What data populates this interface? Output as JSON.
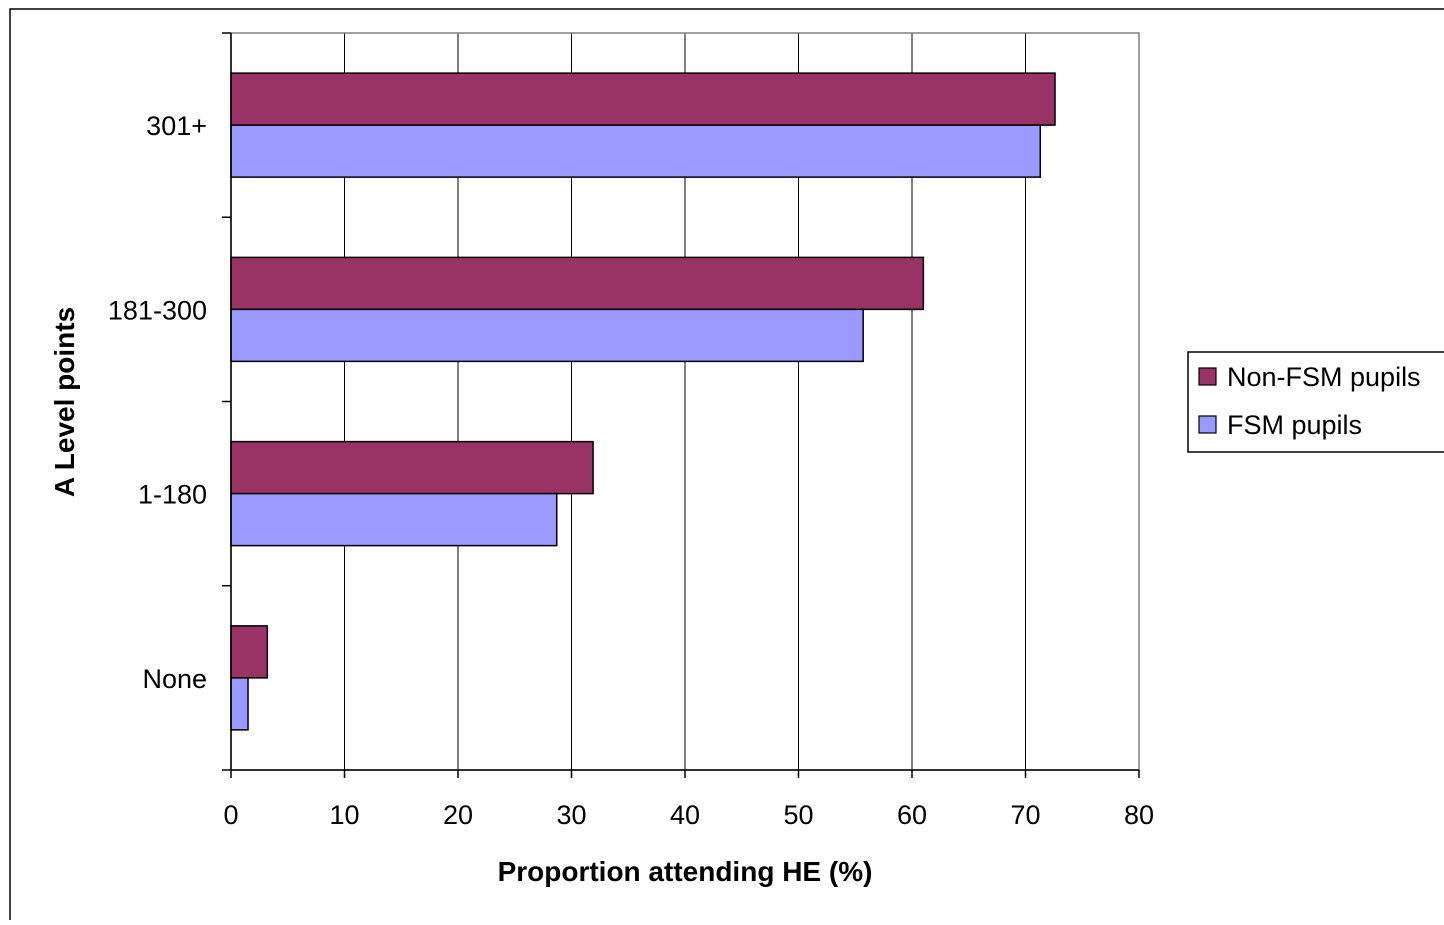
{
  "chart_data": {
    "type": "bar",
    "orientation": "horizontal",
    "categories": [
      "301+",
      "181-300",
      "1-180",
      "None"
    ],
    "series": [
      {
        "name": "Non-FSM pupils",
        "color": "#993366",
        "values": [
          72.6,
          61.0,
          31.9,
          3.2
        ]
      },
      {
        "name": "FSM pupils",
        "color": "#9999FF",
        "values": [
          71.3,
          55.7,
          28.7,
          1.5
        ]
      }
    ],
    "xlabel": "Proportion attending HE (%)",
    "ylabel": "A Level points",
    "xlim": [
      0,
      80
    ],
    "xticks": [
      0,
      10,
      20,
      30,
      40,
      50,
      60,
      70,
      80
    ],
    "grid": "vertical",
    "legend_position": "right"
  }
}
